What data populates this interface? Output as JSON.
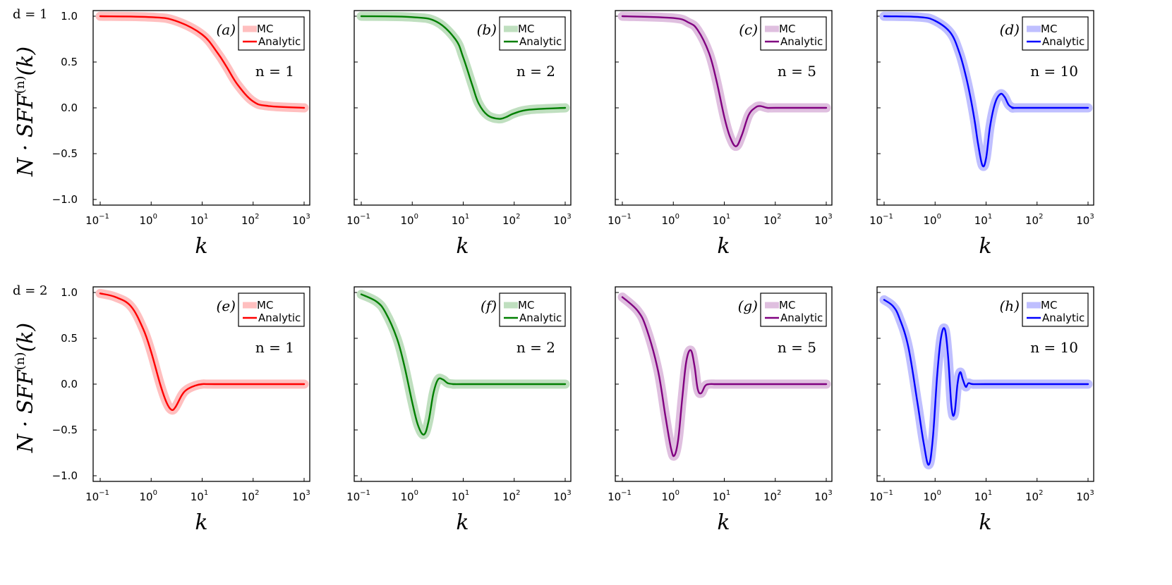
{
  "y_axis_label": {
    "main": "N · SFF",
    "sup": "(n)",
    "arg": "(k)"
  },
  "row_labels": [
    "d = 1",
    "d = 2"
  ],
  "colors": {
    "red": "#ff0000",
    "green": "#007f00",
    "purple": "#800080",
    "blue": "#0000ff"
  },
  "chart_data": [
    {
      "type": "line",
      "panel": "(a)",
      "n_label": "n = 1",
      "d": 1,
      "color": "red",
      "xlabel": "k",
      "xscale": "log",
      "xlim": [
        0.1,
        1000
      ],
      "ylim": [
        -1.0,
        1.0
      ],
      "yticks": [
        "1.0",
        "0.5",
        "0.0",
        "−0.5",
        "−1.0"
      ],
      "xticks": [
        "10",
        "10",
        "10",
        "10",
        "10"
      ],
      "xtick_exp": [
        "−1",
        "0",
        "1",
        "2",
        "3"
      ],
      "legend": [
        "MC",
        "Analytic"
      ],
      "x": [
        0.1,
        1,
        3,
        10,
        20,
        30,
        50,
        100,
        200,
        1000
      ],
      "y": [
        1.0,
        0.99,
        0.95,
        0.8,
        0.6,
        0.45,
        0.25,
        0.07,
        0.02,
        0.0
      ]
    },
    {
      "type": "line",
      "panel": "(b)",
      "n_label": "n = 2",
      "d": 1,
      "color": "green",
      "xlabel": "k",
      "xscale": "log",
      "xlim": [
        0.1,
        1000
      ],
      "ylim": [
        -1.0,
        1.0
      ],
      "yticks": [
        "1.0",
        "0.5",
        "0.0",
        "−0.5",
        "−1.0"
      ],
      "xticks": [
        "10",
        "10",
        "10",
        "10",
        "10"
      ],
      "xtick_exp": [
        "−1",
        "0",
        "1",
        "2",
        "3"
      ],
      "legend": [
        "MC",
        "Analytic"
      ],
      "x": [
        0.1,
        1,
        3,
        7,
        10,
        15,
        20,
        30,
        50,
        70,
        100,
        200,
        1000
      ],
      "y": [
        1.0,
        0.99,
        0.94,
        0.75,
        0.55,
        0.25,
        0.05,
        -0.08,
        -0.12,
        -0.1,
        -0.06,
        -0.02,
        0.0
      ]
    },
    {
      "type": "line",
      "panel": "(c)",
      "n_label": "n = 5",
      "d": 1,
      "color": "purple",
      "xlabel": "k",
      "xscale": "log",
      "xlim": [
        0.1,
        1000
      ],
      "ylim": [
        -1.0,
        1.0
      ],
      "yticks": [
        "1.0",
        "0.5",
        "0.0",
        "−0.5",
        "−1.0"
      ],
      "xticks": [
        "10",
        "10",
        "10",
        "10",
        "10"
      ],
      "xtick_exp": [
        "−1",
        "0",
        "1",
        "2",
        "3"
      ],
      "legend": [
        "MC",
        "Analytic"
      ],
      "x": [
        0.1,
        1,
        2,
        3,
        5,
        7,
        10,
        13,
        17,
        22,
        30,
        40,
        50,
        70,
        100,
        1000
      ],
      "y": [
        1.0,
        0.98,
        0.93,
        0.85,
        0.6,
        0.3,
        -0.1,
        -0.32,
        -0.42,
        -0.3,
        -0.08,
        0.0,
        0.02,
        0.0,
        0.0,
        0.0
      ]
    },
    {
      "type": "line",
      "panel": "(d)",
      "n_label": "n = 10",
      "d": 1,
      "color": "blue",
      "xlabel": "k",
      "xscale": "log",
      "xlim": [
        0.1,
        1000
      ],
      "ylim": [
        -1.0,
        1.0
      ],
      "yticks": [
        "1.0",
        "0.5",
        "0.0",
        "−0.5",
        "−1.0"
      ],
      "xticks": [
        "10",
        "10",
        "10",
        "10",
        "10"
      ],
      "xtick_exp": [
        "−1",
        "0",
        "1",
        "2",
        "3"
      ],
      "legend": [
        "MC",
        "Analytic"
      ],
      "x": [
        0.1,
        0.5,
        1,
        2,
        3,
        4,
        5,
        6,
        7,
        8.5,
        10,
        12,
        15,
        19,
        23,
        28,
        35,
        45,
        1000
      ],
      "y": [
        1.0,
        0.99,
        0.95,
        0.82,
        0.6,
        0.35,
        0.1,
        -0.15,
        -0.4,
        -0.63,
        -0.55,
        -0.2,
        0.05,
        0.15,
        0.12,
        0.03,
        0.0,
        0.0,
        0.0
      ]
    },
    {
      "type": "line",
      "panel": "(e)",
      "n_label": "n = 1",
      "d": 2,
      "color": "red",
      "xlabel": "k",
      "xscale": "log",
      "xlim": [
        0.1,
        1000
      ],
      "ylim": [
        -1.0,
        1.0
      ],
      "yticks": [
        "1.0",
        "0.5",
        "0.0",
        "−0.5",
        "−1.0"
      ],
      "xticks": [
        "10",
        "10",
        "10",
        "10",
        "10"
      ],
      "xtick_exp": [
        "−1",
        "0",
        "1",
        "2",
        "3"
      ],
      "legend": [
        "MC",
        "Analytic"
      ],
      "x": [
        0.1,
        0.2,
        0.4,
        0.7,
        1,
        1.5,
        2,
        2.5,
        3,
        4,
        5,
        7,
        10,
        20,
        1000
      ],
      "y": [
        0.99,
        0.95,
        0.85,
        0.6,
        0.35,
        0.0,
        -0.2,
        -0.28,
        -0.25,
        -0.12,
        -0.06,
        -0.02,
        0.0,
        0.0,
        0.0
      ]
    },
    {
      "type": "line",
      "panel": "(f)",
      "n_label": "n = 2",
      "d": 2,
      "color": "green",
      "xlabel": "k",
      "xscale": "log",
      "xlim": [
        0.1,
        1000
      ],
      "ylim": [
        -1.0,
        1.0
      ],
      "yticks": [
        "1.0",
        "0.5",
        "0.0",
        "−0.5",
        "−1.0"
      ],
      "xticks": [
        "10",
        "10",
        "10",
        "10",
        "10"
      ],
      "xtick_exp": [
        "−1",
        "0",
        "1",
        "2",
        "3"
      ],
      "legend": [
        "MC",
        "Analytic"
      ],
      "x": [
        0.1,
        0.2,
        0.3,
        0.5,
        0.7,
        1,
        1.3,
        1.7,
        2.1,
        2.6,
        3.2,
        4,
        5,
        7,
        10,
        1000
      ],
      "y": [
        0.98,
        0.9,
        0.78,
        0.5,
        0.2,
        -0.2,
        -0.45,
        -0.55,
        -0.4,
        -0.1,
        0.05,
        0.05,
        0.01,
        0.0,
        0.0,
        0.0
      ]
    },
    {
      "type": "line",
      "panel": "(g)",
      "n_label": "n = 5",
      "d": 2,
      "color": "purple",
      "xlabel": "k",
      "xscale": "log",
      "xlim": [
        0.1,
        1000
      ],
      "ylim": [
        -1.0,
        1.0
      ],
      "yticks": [
        "1.0",
        "0.5",
        "0.0",
        "−0.5",
        "−1.0"
      ],
      "xticks": [
        "10",
        "10",
        "10",
        "10",
        "10"
      ],
      "xtick_exp": [
        "−1",
        "0",
        "1",
        "2",
        "3"
      ],
      "legend": [
        "MC",
        "Analytic"
      ],
      "x": [
        0.1,
        0.2,
        0.3,
        0.5,
        0.7,
        0.9,
        1.05,
        1.25,
        1.5,
        1.8,
        2.2,
        2.6,
        3.0,
        3.5,
        4.2,
        5,
        7,
        10,
        1000
      ],
      "y": [
        0.95,
        0.8,
        0.6,
        0.15,
        -0.35,
        -0.7,
        -0.78,
        -0.6,
        -0.15,
        0.25,
        0.37,
        0.2,
        -0.05,
        -0.1,
        -0.02,
        0.0,
        0.0,
        0.0,
        0.0
      ]
    },
    {
      "type": "line",
      "panel": "(h)",
      "n_label": "n = 10",
      "d": 2,
      "color": "blue",
      "xlabel": "k",
      "xscale": "log",
      "xlim": [
        0.1,
        1000
      ],
      "ylim": [
        -1.0,
        1.0
      ],
      "yticks": [
        "1.0",
        "0.5",
        "0.0",
        "−0.5",
        "−1.0"
      ],
      "xticks": [
        "10",
        "10",
        "10",
        "10",
        "10"
      ],
      "xtick_exp": [
        "−1",
        "0",
        "1",
        "2",
        "3"
      ],
      "legend": [
        "MC",
        "Analytic"
      ],
      "x": [
        0.1,
        0.15,
        0.2,
        0.3,
        0.45,
        0.6,
        0.75,
        0.9,
        1.1,
        1.3,
        1.55,
        1.8,
        2.1,
        2.4,
        2.75,
        3.1,
        3.5,
        4.0,
        4.5,
        5.5,
        10,
        1000
      ],
      "y": [
        0.92,
        0.85,
        0.72,
        0.4,
        -0.2,
        -0.65,
        -0.88,
        -0.6,
        0.1,
        0.5,
        0.6,
        0.3,
        -0.25,
        -0.32,
        0.0,
        0.13,
        0.05,
        -0.03,
        0.01,
        0.0,
        0.0,
        0.0
      ]
    }
  ]
}
